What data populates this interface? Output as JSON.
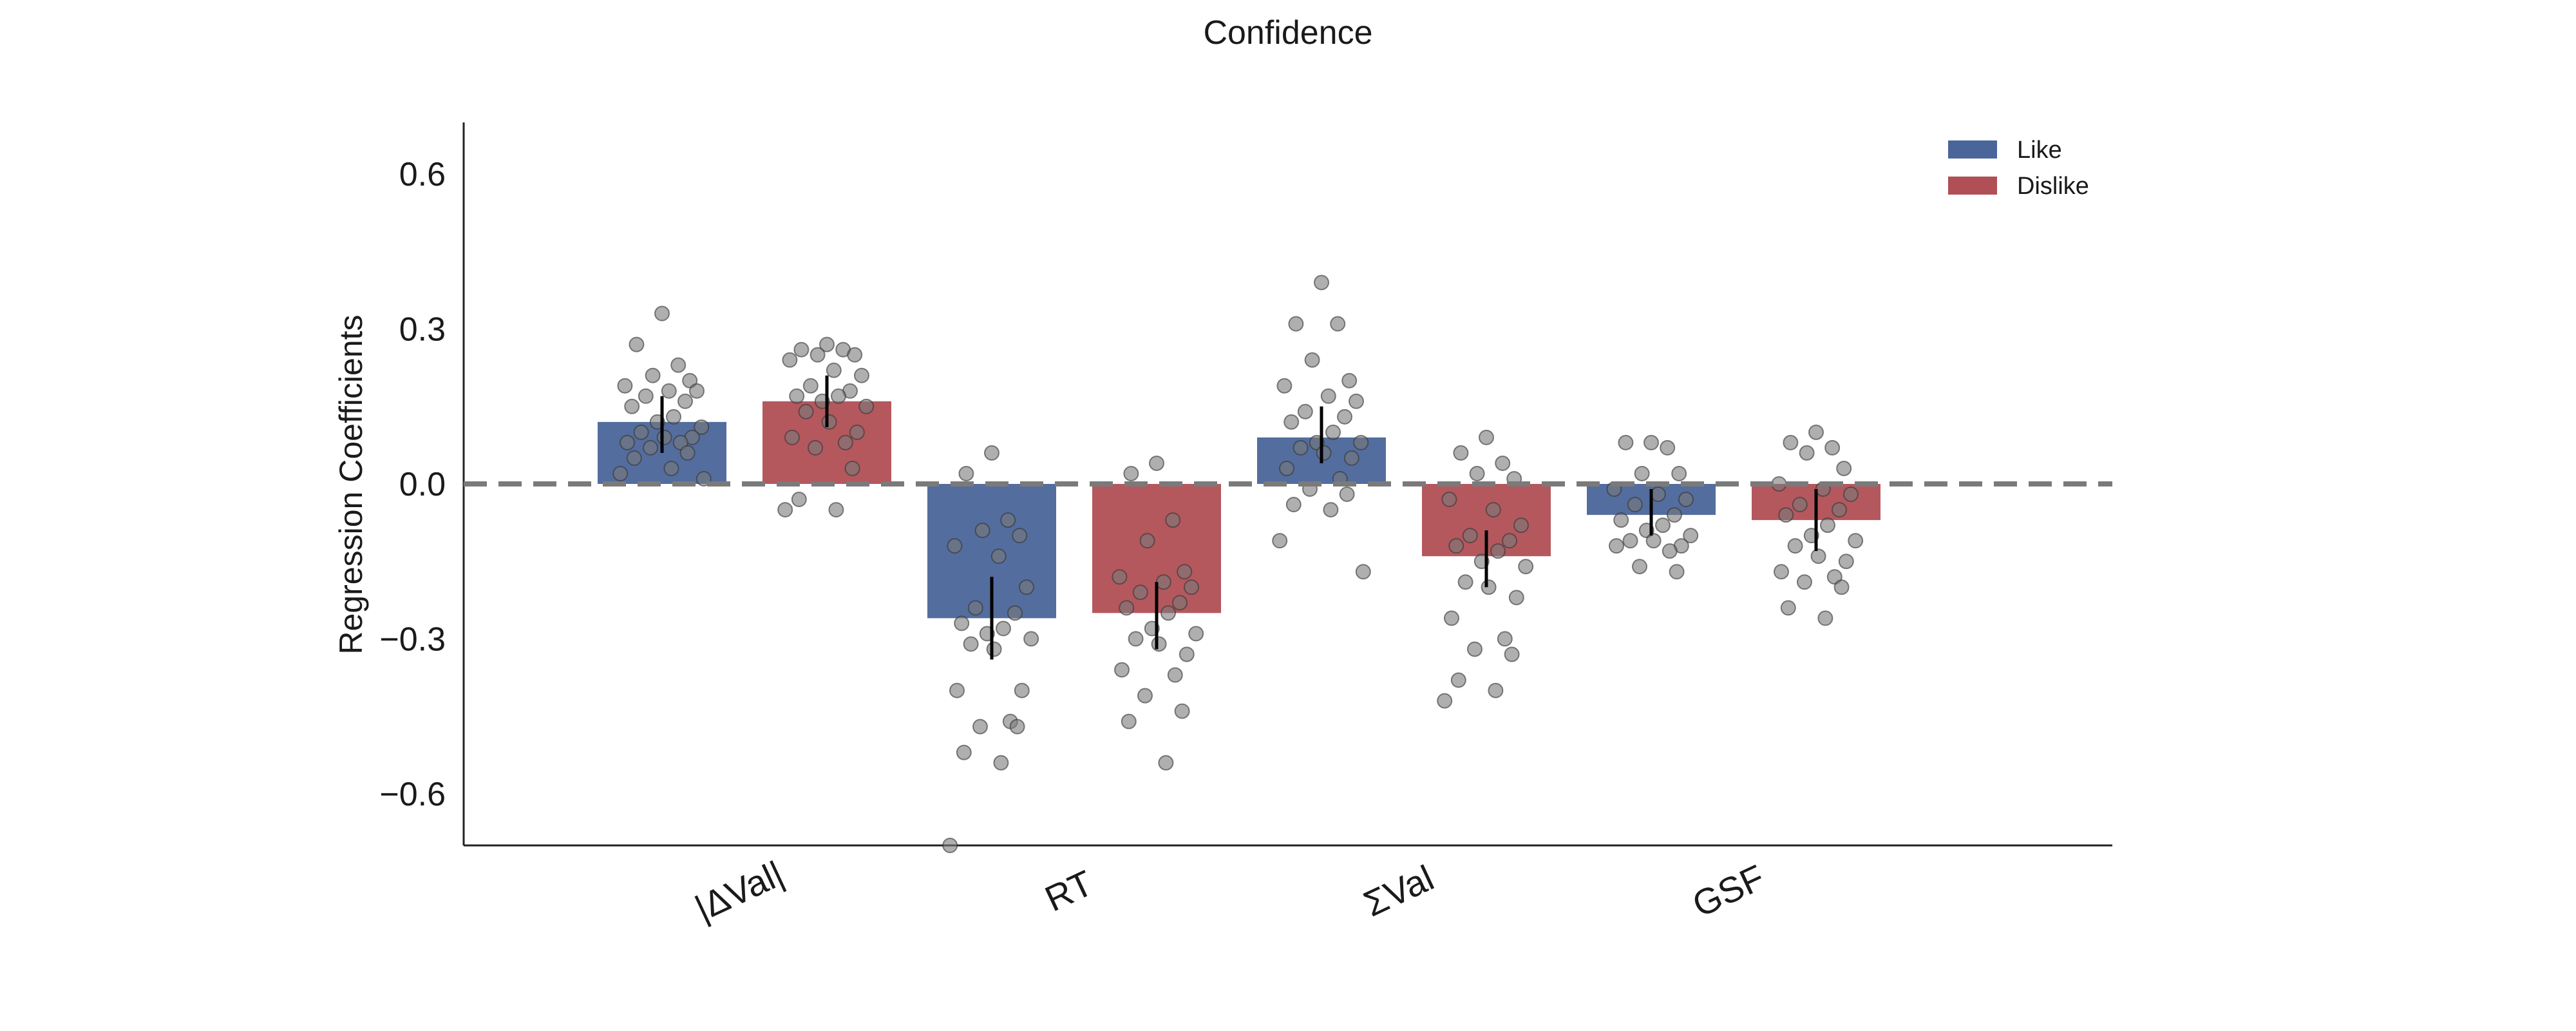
{
  "colors": {
    "like": "#4a6599",
    "dislike": "#b04f55",
    "points": "#7a7a7a",
    "zero_line": "#7a7a7a",
    "error_bar": "#000000"
  },
  "chart_data": {
    "type": "bar",
    "title": "Confidence",
    "xlabel": "",
    "ylabel": "Regression Coefficients",
    "ylim": [
      -0.7,
      0.7
    ],
    "yticks": [
      0.6,
      0.3,
      0.0,
      -0.3,
      -0.6
    ],
    "ytick_labels": [
      "0.6",
      "0.3",
      "0.0",
      "−0.3",
      "−0.6"
    ],
    "categories": [
      "|ΔVal|",
      "RT",
      "ΣVal",
      "GSF"
    ],
    "legend_position": "top-right",
    "grid": false,
    "zero_line": {
      "y": 0.0,
      "style": "dashed"
    },
    "series": [
      {
        "name": "Like",
        "values": [
          0.12,
          -0.26,
          0.09,
          -0.06
        ],
        "ci": [
          [
            0.06,
            0.17
          ],
          [
            -0.34,
            -0.18
          ],
          [
            0.04,
            0.15
          ],
          [
            -0.1,
            -0.01
          ]
        ],
        "points": [
          [
            0.33,
            0.27,
            0.23,
            0.21,
            0.2,
            0.19,
            0.18,
            0.18,
            0.17,
            0.16,
            0.15,
            0.13,
            0.12,
            0.11,
            0.1,
            0.09,
            0.09,
            0.08,
            0.08,
            0.07,
            0.06,
            0.05,
            0.03,
            0.02,
            0.01
          ],
          [
            0.06,
            0.02,
            -0.07,
            -0.09,
            -0.1,
            -0.12,
            -0.14,
            -0.2,
            -0.24,
            -0.25,
            -0.27,
            -0.28,
            -0.29,
            -0.3,
            -0.31,
            -0.32,
            -0.4,
            -0.4,
            -0.46,
            -0.47,
            -0.47,
            -0.52,
            -0.54,
            -0.7
          ],
          [
            0.39,
            0.31,
            0.31,
            0.24,
            0.2,
            0.19,
            0.17,
            0.16,
            0.14,
            0.13,
            0.12,
            0.1,
            0.08,
            0.08,
            0.07,
            0.06,
            0.05,
            0.03,
            0.01,
            -0.01,
            -0.02,
            -0.04,
            -0.05,
            -0.11,
            -0.17
          ],
          [
            0.08,
            0.08,
            0.07,
            0.02,
            0.02,
            -0.01,
            -0.02,
            -0.03,
            -0.04,
            -0.06,
            -0.07,
            -0.08,
            -0.09,
            -0.1,
            -0.11,
            -0.11,
            -0.12,
            -0.12,
            -0.13,
            -0.16,
            -0.17
          ]
        ]
      },
      {
        "name": "Dislike",
        "values": [
          0.16,
          -0.25,
          -0.14,
          -0.07
        ],
        "ci": [
          [
            0.11,
            0.21
          ],
          [
            -0.32,
            -0.19
          ],
          [
            -0.2,
            -0.09
          ],
          [
            -0.13,
            -0.01
          ]
        ],
        "points": [
          [
            0.27,
            0.26,
            0.26,
            0.25,
            0.25,
            0.24,
            0.22,
            0.21,
            0.19,
            0.18,
            0.17,
            0.17,
            0.16,
            0.15,
            0.14,
            0.12,
            0.1,
            0.09,
            0.08,
            0.07,
            0.03,
            -0.03,
            -0.05,
            -0.05
          ],
          [
            0.04,
            0.02,
            -0.07,
            -0.11,
            -0.17,
            -0.18,
            -0.19,
            -0.2,
            -0.21,
            -0.23,
            -0.24,
            -0.25,
            -0.28,
            -0.29,
            -0.3,
            -0.31,
            -0.33,
            -0.36,
            -0.37,
            -0.41,
            -0.44,
            -0.46,
            -0.54
          ],
          [
            0.09,
            0.06,
            0.04,
            0.02,
            0.01,
            -0.03,
            -0.05,
            -0.08,
            -0.1,
            -0.11,
            -0.12,
            -0.13,
            -0.15,
            -0.16,
            -0.19,
            -0.2,
            -0.22,
            -0.26,
            -0.3,
            -0.32,
            -0.33,
            -0.38,
            -0.4,
            -0.42
          ],
          [
            0.1,
            0.08,
            0.07,
            0.06,
            0.03,
            0.0,
            -0.01,
            -0.02,
            -0.04,
            -0.05,
            -0.06,
            -0.08,
            -0.1,
            -0.11,
            -0.12,
            -0.14,
            -0.15,
            -0.17,
            -0.18,
            -0.19,
            -0.2,
            -0.24,
            -0.26
          ]
        ]
      }
    ]
  }
}
